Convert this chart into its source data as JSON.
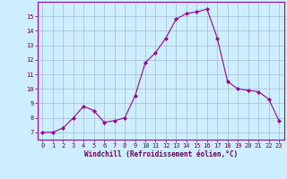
{
  "x": [
    0,
    1,
    2,
    3,
    4,
    5,
    6,
    7,
    8,
    9,
    10,
    11,
    12,
    13,
    14,
    15,
    16,
    17,
    18,
    19,
    20,
    21,
    22,
    23
  ],
  "y": [
    7.0,
    7.0,
    7.3,
    8.0,
    8.8,
    8.5,
    7.7,
    7.8,
    8.0,
    9.5,
    11.8,
    12.5,
    13.5,
    14.8,
    15.2,
    15.3,
    15.5,
    13.5,
    10.5,
    10.0,
    9.9,
    9.8,
    9.3,
    7.8
  ],
  "xlabel": "Windchill (Refroidissement éolien,°C)",
  "xlim": [
    -0.5,
    23.5
  ],
  "ylim": [
    6.5,
    16.0
  ],
  "yticks": [
    7,
    8,
    9,
    10,
    11,
    12,
    13,
    14,
    15
  ],
  "xticks": [
    0,
    1,
    2,
    3,
    4,
    5,
    6,
    7,
    8,
    9,
    10,
    11,
    12,
    13,
    14,
    15,
    16,
    17,
    18,
    19,
    20,
    21,
    22,
    23
  ],
  "line_color": "#990099",
  "marker": "D",
  "marker_size": 2,
  "bg_color": "#cceeff",
  "grid_color": "#aabbcc",
  "label_color": "#660066",
  "tick_color": "#660066",
  "xlabel_fontsize": 5.5,
  "tick_fontsize": 5.0,
  "font_family": "monospace"
}
